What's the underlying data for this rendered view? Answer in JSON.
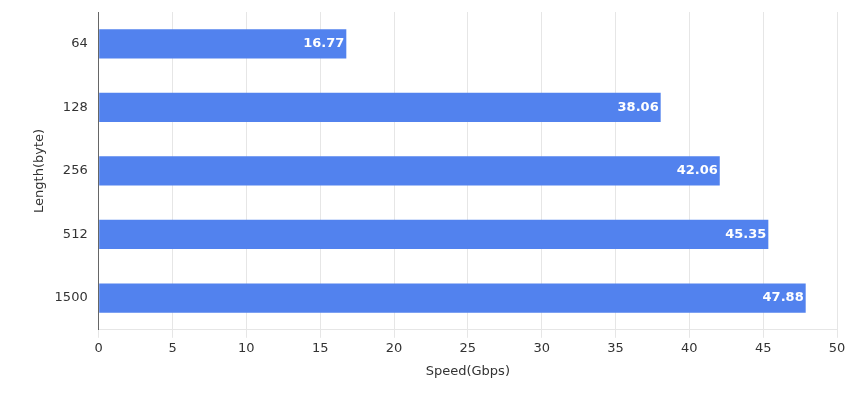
{
  "chart_data": {
    "type": "bar",
    "orientation": "horizontal",
    "categories": [
      "64",
      "128",
      "256",
      "512",
      "1500"
    ],
    "values": [
      16.77,
      38.06,
      42.06,
      45.35,
      47.88
    ],
    "color": "#5282ee",
    "x_label": "Speed(Gbps)",
    "y_label": "Length(byte)",
    "xlim": [
      0,
      50
    ],
    "xticks": [
      0,
      5,
      10,
      15,
      20,
      25,
      30,
      35,
      40,
      45,
      50
    ],
    "grid": true,
    "data_labels": true
  }
}
